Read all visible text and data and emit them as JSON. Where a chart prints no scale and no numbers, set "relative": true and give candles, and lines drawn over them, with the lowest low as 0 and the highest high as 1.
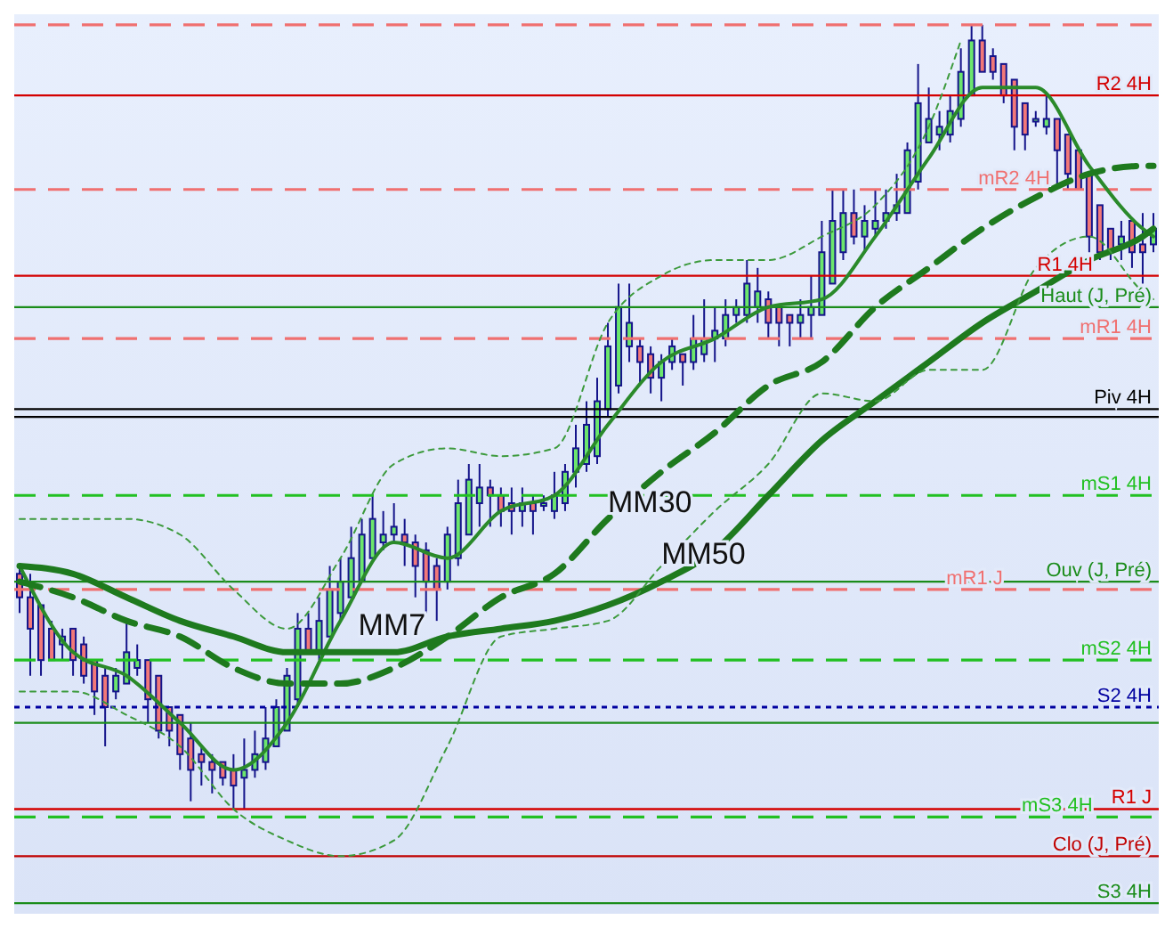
{
  "chart_data": {
    "type": "candlestick",
    "relative": true,
    "tick_labels": false,
    "legend": false,
    "categories": [
      null,
      null,
      null,
      null,
      null,
      null,
      null,
      null,
      null,
      null,
      null,
      null,
      null,
      null,
      null,
      null,
      null,
      null,
      null,
      null,
      null,
      null,
      null,
      null,
      null,
      null,
      null,
      null,
      null,
      null,
      null,
      null,
      null,
      null,
      null,
      null,
      null,
      null,
      null,
      null,
      null,
      null,
      null,
      null,
      null,
      null,
      null,
      null,
      null,
      null,
      null,
      null,
      null,
      null,
      null,
      null,
      null,
      null,
      null,
      null,
      null,
      null,
      null,
      null,
      null,
      null,
      null,
      null,
      null,
      null,
      null,
      null,
      null,
      null,
      null,
      null,
      null,
      null,
      null,
      null,
      null,
      null,
      null,
      null,
      null,
      null,
      null,
      null,
      null,
      null,
      null,
      null,
      null,
      null,
      null,
      null,
      null,
      null,
      null,
      null,
      null,
      null,
      null,
      null,
      null,
      null,
      null
    ],
    "ohlc": [
      [
        0.3,
        0.31,
        0.25,
        0.27
      ],
      [
        0.27,
        0.3,
        0.17,
        0.23
      ],
      [
        0.26,
        0.26,
        0.17,
        0.19
      ],
      [
        0.23,
        0.24,
        0.19,
        0.19
      ],
      [
        0.21,
        0.23,
        0.19,
        0.22
      ],
      [
        0.23,
        0.23,
        0.17,
        0.19
      ],
      [
        0.21,
        0.22,
        0.16,
        0.17
      ],
      [
        0.19,
        0.19,
        0.12,
        0.15
      ],
      [
        0.17,
        0.18,
        0.08,
        0.13
      ],
      [
        0.15,
        0.18,
        0.14,
        0.17
      ],
      [
        0.16,
        0.24,
        0.16,
        0.2
      ],
      [
        0.18,
        0.21,
        0.17,
        0.19
      ],
      [
        0.19,
        0.19,
        0.11,
        0.14
      ],
      [
        0.17,
        0.17,
        0.09,
        0.1
      ],
      [
        0.13,
        0.13,
        0.08,
        0.1
      ],
      [
        0.12,
        0.12,
        0.05,
        0.07
      ],
      [
        0.09,
        0.11,
        0.01,
        0.05
      ],
      [
        0.07,
        0.08,
        0.03,
        0.06
      ],
      [
        0.06,
        0.07,
        0.02,
        0.05
      ],
      [
        0.06,
        0.06,
        0.03,
        0.04
      ],
      [
        0.05,
        0.07,
        0.0,
        0.03
      ],
      [
        0.04,
        0.09,
        0,
        0.05
      ],
      [
        0.05,
        0.1,
        0.04,
        0.07
      ],
      [
        0.06,
        0.13,
        0.05,
        0.09
      ],
      [
        0.08,
        0.14,
        0.08,
        0.13
      ],
      [
        0.1,
        0.18,
        0.1,
        0.17
      ],
      [
        0.14,
        0.25,
        0.13,
        0.23
      ],
      [
        0.23,
        0.25,
        0.2,
        0.2
      ],
      [
        0.2,
        0.27,
        0.19,
        0.24
      ],
      [
        0.22,
        0.31,
        0.22,
        0.28
      ],
      [
        0.25,
        0.32,
        0.24,
        0.29
      ],
      [
        0.27,
        0.36,
        0.27,
        0.32
      ],
      [
        0.29,
        0.37,
        0.29,
        0.35
      ],
      [
        0.32,
        0.4,
        0.32,
        0.37
      ],
      [
        0.34,
        0.38,
        0.33,
        0.35
      ],
      [
        0.35,
        0.39,
        0.34,
        0.36
      ],
      [
        0.35,
        0.37,
        0.31,
        0.34
      ],
      [
        0.34,
        0.35,
        0.27,
        0.31
      ],
      [
        0.33,
        0.34,
        0.25,
        0.29
      ],
      [
        0.31,
        0.32,
        0.24,
        0.28
      ],
      [
        0.29,
        0.36,
        0.28,
        0.35
      ],
      [
        0.32,
        0.42,
        0.31,
        0.39
      ],
      [
        0.35,
        0.44,
        0.35,
        0.42
      ],
      [
        0.39,
        0.44,
        0.36,
        0.41
      ],
      [
        0.41,
        0.42,
        0.36,
        0.4
      ],
      [
        0.4,
        0.41,
        0.36,
        0.38
      ],
      [
        0.39,
        0.41,
        0.35,
        0.38
      ],
      [
        0.38,
        0.41,
        0.36,
        0.39
      ],
      [
        0.39,
        0.4,
        0.35,
        0.38
      ],
      [
        0.39,
        0.4,
        0.38,
        0.39
      ],
      [
        0.38,
        0.43,
        0.37,
        0.4
      ],
      [
        0.39,
        0.44,
        0.38,
        0.43
      ],
      [
        0.43,
        0.49,
        0.41,
        0.46
      ],
      [
        0.44,
        0.52,
        0.43,
        0.49
      ],
      [
        0.45,
        0.55,
        0.44,
        0.52
      ],
      [
        0.51,
        0.62,
        0.5,
        0.59
      ],
      [
        0.54,
        0.67,
        0.53,
        0.64
      ],
      [
        0.59,
        0.67,
        0.57,
        0.62
      ],
      [
        0.59,
        0.6,
        0.54,
        0.57
      ],
      [
        0.58,
        0.59,
        0.53,
        0.55
      ],
      [
        0.55,
        0.58,
        0.52,
        0.57
      ],
      [
        0.57,
        0.6,
        0.56,
        0.59
      ],
      [
        0.58,
        0.58,
        0.54,
        0.57
      ],
      [
        0.57,
        0.63,
        0.56,
        0.6
      ],
      [
        0.58,
        0.65,
        0.57,
        0.6
      ],
      [
        0.6,
        0.64,
        0.57,
        0.61
      ],
      [
        0.6,
        0.65,
        0.59,
        0.63
      ],
      [
        0.63,
        0.65,
        0.62,
        0.64
      ],
      [
        0.63,
        0.7,
        0.62,
        0.67
      ],
      [
        0.64,
        0.69,
        0.62,
        0.66
      ],
      [
        0.65,
        0.66,
        0.6,
        0.62
      ],
      [
        0.64,
        0.64,
        0.59,
        0.62
      ],
      [
        0.63,
        0.63,
        0.59,
        0.62
      ],
      [
        0.62,
        0.65,
        0.6,
        0.63
      ],
      [
        0.63,
        0.68,
        0.6,
        0.64
      ],
      [
        0.63,
        0.75,
        0.63,
        0.71
      ],
      [
        0.67,
        0.79,
        0.67,
        0.75
      ],
      [
        0.71,
        0.79,
        0.7,
        0.76
      ],
      [
        0.76,
        0.79,
        0.72,
        0.73
      ],
      [
        0.73,
        0.77,
        0.71,
        0.75
      ],
      [
        0.74,
        0.79,
        0.73,
        0.75
      ],
      [
        0.75,
        0.79,
        0.74,
        0.76
      ],
      [
        0.76,
        0.81,
        0.75,
        0.77
      ],
      [
        0.76,
        0.85,
        0.76,
        0.84
      ],
      [
        0.8,
        0.95,
        0.79,
        0.9
      ],
      [
        0.85,
        0.92,
        0.85,
        0.88
      ],
      [
        0.86,
        0.89,
        0.84,
        0.87
      ],
      [
        0.86,
        0.91,
        0.85,
        0.89
      ],
      [
        0.88,
        0.97,
        0.87,
        0.94
      ],
      [
        0.91,
        1,
        0.91,
        0.98
      ],
      [
        0.98,
        1,
        0.94,
        0.94
      ],
      [
        0.96,
        0.97,
        0.93,
        0.94
      ],
      [
        0.95,
        0.95,
        0.9,
        0.91
      ],
      [
        0.93,
        0.93,
        0.84,
        0.87
      ],
      [
        0.9,
        0.9,
        0.84,
        0.86
      ],
      [
        0.88,
        0.89,
        0.87,
        0.88
      ],
      [
        0.87,
        0.91,
        0.86,
        0.88
      ],
      [
        0.88,
        0.88,
        0.79,
        0.84
      ],
      [
        0.86,
        0.86,
        0.79,
        0.81
      ],
      [
        0.84,
        0.84,
        0.79,
        0.79
      ],
      [
        0.81,
        0.81,
        0.71,
        0.73
      ],
      [
        0.77,
        0.77,
        0.7,
        0.71
      ],
      [
        0.74,
        0.74,
        0.7,
        0.71
      ],
      [
        0.72,
        0.75,
        0.7,
        0.73
      ],
      [
        0.75,
        0.75,
        0.69,
        0.71
      ],
      [
        0.72,
        0.76,
        0.67,
        0.71
      ],
      [
        0.72,
        0.76,
        0.71,
        0.74
      ]
    ],
    "series": [
      {
        "name": "MM7",
        "type": "line",
        "color": "#2a8a2a",
        "line_style": "solid",
        "values": [
          0.31,
          null,
          null,
          null,
          null,
          0.2,
          null,
          null,
          null,
          null,
          0.17,
          null,
          null,
          null,
          null,
          0.11,
          null,
          null,
          null,
          null,
          0.05,
          null,
          null,
          null,
          null,
          0.11,
          null,
          null,
          null,
          null,
          0.24,
          null,
          null,
          null,
          null,
          0.34,
          null,
          null,
          null,
          null,
          0.32,
          null,
          null,
          null,
          null,
          0.38,
          null,
          null,
          null,
          null,
          0.4,
          null,
          null,
          null,
          null,
          0.49,
          null,
          null,
          null,
          null,
          0.57,
          null,
          null,
          null,
          null,
          0.6,
          null,
          null,
          null,
          null,
          0.64,
          null,
          null,
          null,
          null,
          0.65,
          null,
          null,
          null,
          null,
          0.73,
          null,
          null,
          null,
          null,
          0.83,
          null,
          null,
          null,
          null,
          0.92,
          null,
          null,
          null,
          null,
          0.92,
          null,
          null,
          null,
          null,
          0.82,
          null,
          null,
          null,
          null,
          0.74,
          0.73
        ]
      },
      {
        "name": "MM30",
        "type": "line",
        "color": "#1e7a1e",
        "line_style": "dashed",
        "values": [
          0.29,
          null,
          null,
          null,
          null,
          0.27,
          null,
          null,
          null,
          null,
          0.24,
          null,
          null,
          null,
          null,
          0.22,
          null,
          null,
          null,
          null,
          0.18,
          null,
          null,
          null,
          null,
          0.16,
          null,
          null,
          null,
          null,
          0.16,
          null,
          null,
          null,
          null,
          0.18,
          null,
          null,
          null,
          null,
          0.22,
          null,
          null,
          null,
          null,
          0.27,
          null,
          null,
          null,
          null,
          0.3,
          null,
          null,
          null,
          null,
          0.37,
          null,
          null,
          null,
          null,
          0.43,
          null,
          null,
          null,
          null,
          0.48,
          null,
          null,
          null,
          null,
          0.54,
          null,
          null,
          null,
          null,
          0.57,
          null,
          null,
          null,
          null,
          0.64,
          null,
          null,
          null,
          null,
          0.69,
          null,
          null,
          null,
          null,
          0.74,
          null,
          null,
          null,
          null,
          0.78,
          null,
          null,
          null,
          null,
          0.81,
          null,
          null,
          null,
          null,
          0.82,
          0.82
        ]
      },
      {
        "name": "MM50",
        "type": "line",
        "color": "#1e7a1e",
        "line_style": "solid",
        "values": [
          0.31,
          null,
          null,
          null,
          null,
          0.3,
          null,
          null,
          null,
          null,
          0.27,
          null,
          null,
          null,
          null,
          0.24,
          null,
          null,
          null,
          null,
          0.22,
          null,
          null,
          null,
          null,
          0.2,
          null,
          null,
          null,
          null,
          0.2,
          null,
          null,
          null,
          null,
          0.2,
          null,
          null,
          null,
          null,
          0.22,
          null,
          null,
          null,
          null,
          0.23,
          null,
          null,
          null,
          null,
          0.24,
          null,
          null,
          null,
          null,
          0.26,
          null,
          null,
          null,
          null,
          0.29,
          null,
          null,
          null,
          null,
          0.33,
          null,
          null,
          null,
          null,
          0.4,
          null,
          null,
          null,
          null,
          0.47,
          null,
          null,
          null,
          null,
          0.52,
          null,
          null,
          null,
          null,
          0.57,
          null,
          null,
          null,
          null,
          0.62,
          null,
          null,
          null,
          null,
          0.66,
          null,
          null,
          null,
          null,
          0.7,
          null,
          null,
          null,
          null,
          0.73,
          0.74
        ]
      },
      {
        "type": "line",
        "color": "#3c9a3c",
        "line_style": "dotted",
        "values": [
          0.37,
          null,
          null,
          null,
          null,
          0.37,
          null,
          null,
          null,
          null,
          0.37,
          null,
          null,
          null,
          null,
          0.35,
          null,
          null,
          null,
          null,
          0.28,
          null,
          null,
          null,
          null,
          0.23,
          null,
          null,
          null,
          null,
          0.32,
          null,
          null,
          null,
          null,
          0.44,
          null,
          null,
          null,
          null,
          0.46,
          null,
          null,
          null,
          null,
          0.45,
          null,
          null,
          null,
          null,
          0.46,
          null,
          null,
          null,
          null,
          0.62,
          null,
          null,
          null,
          null,
          0.68,
          null,
          null,
          null,
          null,
          0.7,
          null,
          null,
          null,
          null,
          0.7,
          null,
          null,
          null,
          null,
          0.73,
          null,
          null,
          null,
          null,
          0.77,
          null,
          null,
          null,
          null,
          0.87,
          null,
          null,
          0.98,
          null,
          null,
          null,
          null,
          null,
          null,
          null,
          null,
          null,
          null,
          null,
          null,
          null,
          null,
          null,
          null,
          null,
          null
        ]
      },
      {
        "type": "line",
        "color": "#3c9a3c",
        "line_style": "dotted",
        "values": [
          0.15,
          null,
          null,
          null,
          null,
          0.15,
          null,
          null,
          null,
          null,
          0.12,
          null,
          null,
          null,
          null,
          0.08,
          null,
          null,
          null,
          null,
          0,
          null,
          null,
          null,
          null,
          -0.04,
          null,
          null,
          null,
          null,
          -0.06,
          null,
          null,
          null,
          null,
          -0.04,
          null,
          null,
          null,
          null,
          0.08,
          null,
          null,
          null,
          null,
          0.22,
          null,
          null,
          null,
          null,
          0.23,
          null,
          null,
          null,
          null,
          0.24,
          null,
          null,
          null,
          null,
          0.31,
          null,
          null,
          null,
          null,
          0.38,
          null,
          null,
          null,
          null,
          0.44,
          null,
          null,
          null,
          null,
          0.53,
          null,
          null,
          null,
          null,
          0.52,
          null,
          null,
          null,
          null,
          0.56,
          null,
          null,
          null,
          null,
          0.56,
          null,
          null,
          null,
          null,
          0.69,
          null,
          null,
          null,
          null,
          0.73,
          null,
          null,
          null,
          null,
          0.66,
          0.65
        ]
      }
    ],
    "ref_lines": [
      {
        "axis": "y",
        "value": 1.0,
        "label": null,
        "color": "#f07070",
        "line_style": "dashed"
      },
      {
        "axis": "y",
        "value": 0.91,
        "label": "R2 4H",
        "color": "#d40000",
        "line_style": "solid"
      },
      {
        "axis": "y",
        "value": 0.79,
        "label": "mR2 4H",
        "color": "#f07070",
        "line_style": "dashed"
      },
      {
        "axis": "y",
        "value": 0.68,
        "label": "R1 4H",
        "color": "#d40000",
        "line_style": "solid"
      },
      {
        "axis": "y",
        "value": 0.64,
        "label": "Haut (J, Pré)",
        "color": "#1a8c1a",
        "line_style": "solid"
      },
      {
        "axis": "y",
        "value": 0.6,
        "label": "mR1 4H",
        "color": "#f07070",
        "line_style": "dashed"
      },
      {
        "axis": "y",
        "value": 0.51,
        "label": "Piv 4H",
        "color": "#000000",
        "line_style": "solid"
      },
      {
        "axis": "y",
        "value": 0.5,
        "label": null,
        "color": "#000000",
        "line_style": "solid"
      },
      {
        "axis": "y",
        "value": 0.4,
        "label": "mS1 4H",
        "color": "#22c022",
        "line_style": "dashed"
      },
      {
        "axis": "y",
        "value": 0.29,
        "label": "Ouv (J, Pré)",
        "color": "#1a8c1a",
        "line_style": "solid"
      },
      {
        "axis": "y",
        "value": 0.28,
        "label": "mR1 J",
        "color": "#f07070",
        "line_style": "dashed"
      },
      {
        "axis": "y",
        "value": 0.19,
        "label": "mS2 4H",
        "color": "#22c022",
        "line_style": "dashed"
      },
      {
        "axis": "y",
        "value": 0.13,
        "label": "S2 4H",
        "color": "#0000a0",
        "line_style": "dotted"
      },
      {
        "axis": "y",
        "value": 0.11,
        "label": null,
        "color": "#1a8c1a",
        "line_style": "solid"
      },
      {
        "axis": "y",
        "value": 0.0,
        "label": "R1 J",
        "color": "#d40000",
        "line_style": "solid"
      },
      {
        "axis": "y",
        "value": -0.01,
        "label": "mS3 4H",
        "color": "#22c022",
        "line_style": "dashed"
      },
      {
        "axis": "y",
        "value": -0.06,
        "label": "Clo (J, Pré)",
        "color": "#c00000",
        "line_style": "solid"
      },
      {
        "axis": "y",
        "value": -0.12,
        "label": "S3 4H",
        "color": "#1a8c1a",
        "line_style": "solid"
      }
    ]
  }
}
